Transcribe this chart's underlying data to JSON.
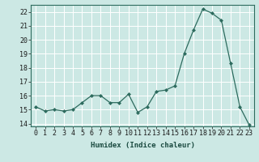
{
  "x": [
    0,
    1,
    2,
    3,
    4,
    5,
    6,
    7,
    8,
    9,
    10,
    11,
    12,
    13,
    14,
    15,
    16,
    17,
    18,
    19,
    20,
    21,
    22,
    23
  ],
  "y": [
    15.2,
    14.9,
    15.0,
    14.9,
    15.0,
    15.5,
    16.0,
    16.0,
    15.5,
    15.5,
    16.1,
    14.8,
    15.2,
    16.3,
    16.4,
    16.7,
    19.0,
    20.7,
    22.2,
    21.9,
    21.4,
    18.3,
    15.2,
    13.9
  ],
  "line_color": "#2d6b5e",
  "marker": "D",
  "marker_size": 2,
  "bg_color": "#cce8e4",
  "grid_color": "#ffffff",
  "xlabel": "Humidex (Indice chaleur)",
  "ylim": [
    13.8,
    22.5
  ],
  "xlim": [
    -0.5,
    23.5
  ],
  "yticks": [
    14,
    15,
    16,
    17,
    18,
    19,
    20,
    21,
    22
  ],
  "xticks": [
    0,
    1,
    2,
    3,
    4,
    5,
    6,
    7,
    8,
    9,
    10,
    11,
    12,
    13,
    14,
    15,
    16,
    17,
    18,
    19,
    20,
    21,
    22,
    23
  ],
  "xlabel_fontsize": 6.5,
  "tick_fontsize": 6.0
}
